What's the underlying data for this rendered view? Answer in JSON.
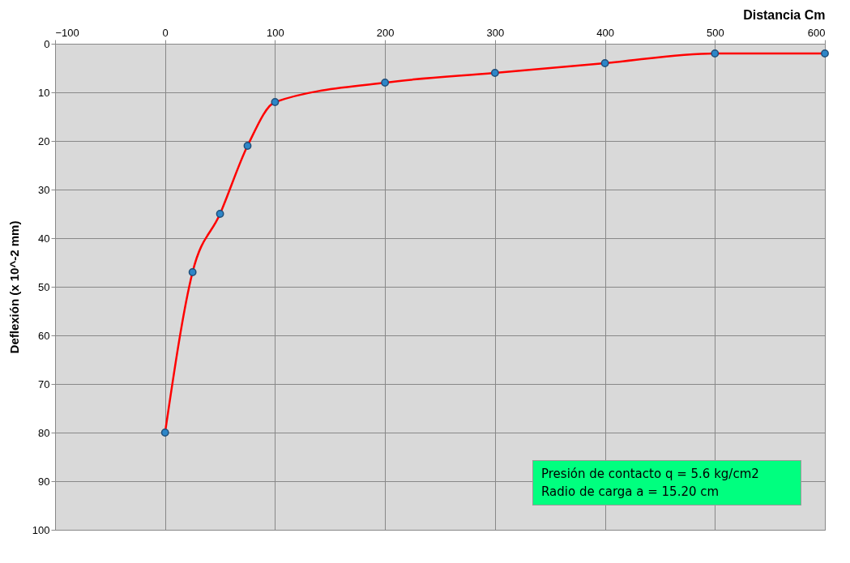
{
  "chart_data": {
    "type": "line",
    "xlabel": "Distancia       Cm",
    "ylabel": "Deflexión  (x 10^-2 mm)",
    "x": [
      0,
      25,
      50,
      75,
      100,
      200,
      300,
      400,
      500,
      600
    ],
    "series": [
      {
        "color": "#ff0000",
        "values": [
          80,
          47,
          35,
          21,
          12,
          8,
          6,
          4,
          2,
          2
        ]
      }
    ],
    "xlim": [
      -100,
      600
    ],
    "xticks": [
      -100,
      0,
      100,
      200,
      300,
      400,
      500,
      600
    ],
    "ylim": [
      100,
      0
    ],
    "yticks": [
      0,
      10,
      20,
      30,
      40,
      50,
      60,
      70,
      80,
      90,
      100
    ],
    "grid": true,
    "marker": "circle",
    "line_style": "solid",
    "annotations": [
      "Presión de contacto q = 5.6 kg/cm2",
      "Radio de carga  a = 15.20 cm"
    ]
  }
}
